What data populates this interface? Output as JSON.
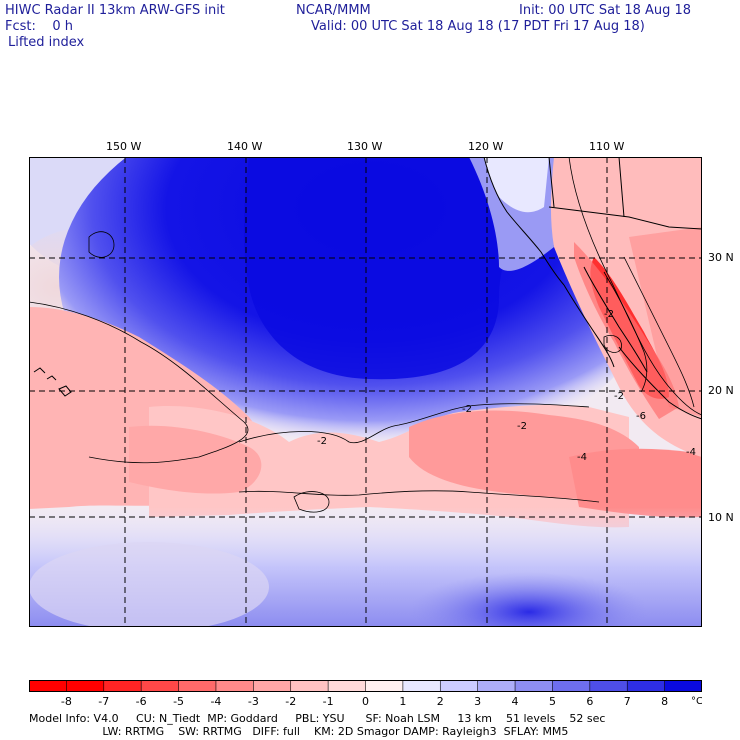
{
  "header": {
    "line1_left": "HIWC Radar II 13km ARW-GFS init",
    "line1_mid": "NCAR/MMM",
    "line1_right": "Init: 00 UTC Sat 18 Aug 18",
    "line2_left": "Fcst:    0 h",
    "line2_right": "Valid: 00 UTC Sat 18 Aug 18 (17 PDT Fri 17 Aug 18)",
    "field": "Lifted index"
  },
  "map": {
    "lon_labels": [
      "150 W",
      "140 W",
      "130 W",
      "120 W",
      "110 W"
    ],
    "lat_labels": [
      "30 N",
      "20 N",
      "10 N"
    ],
    "contour_labels": [
      "-2",
      "-2",
      "-2",
      "-2",
      "-2",
      "-4",
      "-4",
      "-6"
    ]
  },
  "colorbar": {
    "ticks": [
      "-8",
      "-7",
      "-6",
      "-5",
      "-4",
      "-3",
      "-2",
      "-1",
      "0",
      "1",
      "2",
      "3",
      "4",
      "5",
      "6",
      "7",
      "8"
    ],
    "unit": "°C",
    "colors": [
      "#ff0000",
      "#ff2424",
      "#ff4848",
      "#ff6a6a",
      "#ff8a8a",
      "#ffa6a6",
      "#ffc2c2",
      "#ffdada",
      "#fff0f0",
      "#e8e8ff",
      "#ccccff",
      "#aeaef8",
      "#8e8ef2",
      "#6e6eee",
      "#4e4ee8",
      "#2e2ee4",
      "#0a0ae0"
    ]
  },
  "footer": {
    "line1": "Model Info: V4.0     CU: N_Tiedt  MP: Goddard     PBL: YSU      SF: Noah LSM     13 km    51 levels    52 sec",
    "line2": "                     LW: RRTMG    SW: RRTMG   DIFF: full    KM: 2D Smagor DAMP: Rayleigh3  SFLAY: MM5"
  }
}
